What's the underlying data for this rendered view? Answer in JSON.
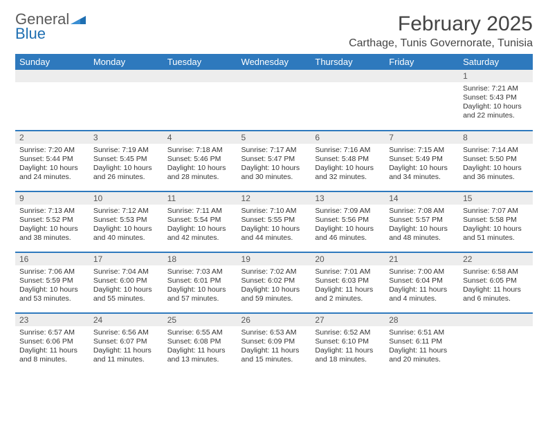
{
  "logo": {
    "line1": "General",
    "line2": "Blue",
    "gray_color": "#5a5a5a",
    "blue_color": "#1f6fb2"
  },
  "title": "February 2025",
  "location": "Carthage, Tunis Governorate, Tunisia",
  "colors": {
    "header_bg": "#2e79bd",
    "header_text": "#ffffff",
    "daynum_bg": "#ededed",
    "row_divider": "#2e79bd",
    "text": "#333333"
  },
  "day_headers": [
    "Sunday",
    "Monday",
    "Tuesday",
    "Wednesday",
    "Thursday",
    "Friday",
    "Saturday"
  ],
  "weeks": [
    [
      {
        "day": "",
        "lines": []
      },
      {
        "day": "",
        "lines": []
      },
      {
        "day": "",
        "lines": []
      },
      {
        "day": "",
        "lines": []
      },
      {
        "day": "",
        "lines": []
      },
      {
        "day": "",
        "lines": []
      },
      {
        "day": "1",
        "lines": [
          "Sunrise: 7:21 AM",
          "Sunset: 5:43 PM",
          "Daylight: 10 hours and 22 minutes."
        ]
      }
    ],
    [
      {
        "day": "2",
        "lines": [
          "Sunrise: 7:20 AM",
          "Sunset: 5:44 PM",
          "Daylight: 10 hours and 24 minutes."
        ]
      },
      {
        "day": "3",
        "lines": [
          "Sunrise: 7:19 AM",
          "Sunset: 5:45 PM",
          "Daylight: 10 hours and 26 minutes."
        ]
      },
      {
        "day": "4",
        "lines": [
          "Sunrise: 7:18 AM",
          "Sunset: 5:46 PM",
          "Daylight: 10 hours and 28 minutes."
        ]
      },
      {
        "day": "5",
        "lines": [
          "Sunrise: 7:17 AM",
          "Sunset: 5:47 PM",
          "Daylight: 10 hours and 30 minutes."
        ]
      },
      {
        "day": "6",
        "lines": [
          "Sunrise: 7:16 AM",
          "Sunset: 5:48 PM",
          "Daylight: 10 hours and 32 minutes."
        ]
      },
      {
        "day": "7",
        "lines": [
          "Sunrise: 7:15 AM",
          "Sunset: 5:49 PM",
          "Daylight: 10 hours and 34 minutes."
        ]
      },
      {
        "day": "8",
        "lines": [
          "Sunrise: 7:14 AM",
          "Sunset: 5:50 PM",
          "Daylight: 10 hours and 36 minutes."
        ]
      }
    ],
    [
      {
        "day": "9",
        "lines": [
          "Sunrise: 7:13 AM",
          "Sunset: 5:52 PM",
          "Daylight: 10 hours and 38 minutes."
        ]
      },
      {
        "day": "10",
        "lines": [
          "Sunrise: 7:12 AM",
          "Sunset: 5:53 PM",
          "Daylight: 10 hours and 40 minutes."
        ]
      },
      {
        "day": "11",
        "lines": [
          "Sunrise: 7:11 AM",
          "Sunset: 5:54 PM",
          "Daylight: 10 hours and 42 minutes."
        ]
      },
      {
        "day": "12",
        "lines": [
          "Sunrise: 7:10 AM",
          "Sunset: 5:55 PM",
          "Daylight: 10 hours and 44 minutes."
        ]
      },
      {
        "day": "13",
        "lines": [
          "Sunrise: 7:09 AM",
          "Sunset: 5:56 PM",
          "Daylight: 10 hours and 46 minutes."
        ]
      },
      {
        "day": "14",
        "lines": [
          "Sunrise: 7:08 AM",
          "Sunset: 5:57 PM",
          "Daylight: 10 hours and 48 minutes."
        ]
      },
      {
        "day": "15",
        "lines": [
          "Sunrise: 7:07 AM",
          "Sunset: 5:58 PM",
          "Daylight: 10 hours and 51 minutes."
        ]
      }
    ],
    [
      {
        "day": "16",
        "lines": [
          "Sunrise: 7:06 AM",
          "Sunset: 5:59 PM",
          "Daylight: 10 hours and 53 minutes."
        ]
      },
      {
        "day": "17",
        "lines": [
          "Sunrise: 7:04 AM",
          "Sunset: 6:00 PM",
          "Daylight: 10 hours and 55 minutes."
        ]
      },
      {
        "day": "18",
        "lines": [
          "Sunrise: 7:03 AM",
          "Sunset: 6:01 PM",
          "Daylight: 10 hours and 57 minutes."
        ]
      },
      {
        "day": "19",
        "lines": [
          "Sunrise: 7:02 AM",
          "Sunset: 6:02 PM",
          "Daylight: 10 hours and 59 minutes."
        ]
      },
      {
        "day": "20",
        "lines": [
          "Sunrise: 7:01 AM",
          "Sunset: 6:03 PM",
          "Daylight: 11 hours and 2 minutes."
        ]
      },
      {
        "day": "21",
        "lines": [
          "Sunrise: 7:00 AM",
          "Sunset: 6:04 PM",
          "Daylight: 11 hours and 4 minutes."
        ]
      },
      {
        "day": "22",
        "lines": [
          "Sunrise: 6:58 AM",
          "Sunset: 6:05 PM",
          "Daylight: 11 hours and 6 minutes."
        ]
      }
    ],
    [
      {
        "day": "23",
        "lines": [
          "Sunrise: 6:57 AM",
          "Sunset: 6:06 PM",
          "Daylight: 11 hours and 8 minutes."
        ]
      },
      {
        "day": "24",
        "lines": [
          "Sunrise: 6:56 AM",
          "Sunset: 6:07 PM",
          "Daylight: 11 hours and 11 minutes."
        ]
      },
      {
        "day": "25",
        "lines": [
          "Sunrise: 6:55 AM",
          "Sunset: 6:08 PM",
          "Daylight: 11 hours and 13 minutes."
        ]
      },
      {
        "day": "26",
        "lines": [
          "Sunrise: 6:53 AM",
          "Sunset: 6:09 PM",
          "Daylight: 11 hours and 15 minutes."
        ]
      },
      {
        "day": "27",
        "lines": [
          "Sunrise: 6:52 AM",
          "Sunset: 6:10 PM",
          "Daylight: 11 hours and 18 minutes."
        ]
      },
      {
        "day": "28",
        "lines": [
          "Sunrise: 6:51 AM",
          "Sunset: 6:11 PM",
          "Daylight: 11 hours and 20 minutes."
        ]
      },
      {
        "day": "",
        "lines": []
      }
    ]
  ]
}
